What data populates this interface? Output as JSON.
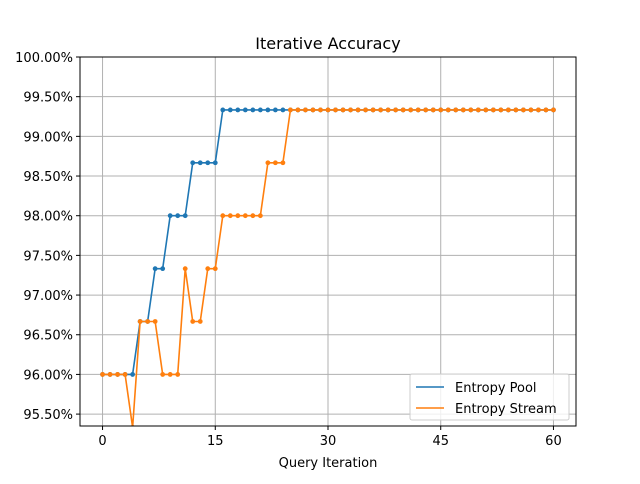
{
  "chart_data": {
    "type": "line",
    "title": "Iterative Accuracy",
    "xlabel": "Query Iteration",
    "ylabel": "",
    "xlim": [
      -3,
      63
    ],
    "ylim": [
      0.9535,
      1.0
    ],
    "xticks": [
      0,
      15,
      30,
      45,
      60
    ],
    "xtick_labels": [
      "0",
      "15",
      "30",
      "45",
      "60"
    ],
    "yticks": [
      0.955,
      0.96,
      0.965,
      0.97,
      0.975,
      0.98,
      0.985,
      0.99,
      0.995,
      1.0
    ],
    "ytick_labels": [
      "95.50%",
      "96.00%",
      "96.50%",
      "97.00%",
      "97.50%",
      "98.00%",
      "98.50%",
      "99.00%",
      "99.50%",
      "100.00%"
    ],
    "grid": true,
    "legend_position": "bottom-right",
    "x": [
      0,
      1,
      2,
      3,
      4,
      5,
      6,
      7,
      8,
      9,
      10,
      11,
      12,
      13,
      14,
      15,
      16,
      17,
      18,
      19,
      20,
      21,
      22,
      23,
      24,
      25,
      26,
      27,
      28,
      29,
      30,
      31,
      32,
      33,
      34,
      35,
      36,
      37,
      38,
      39,
      40,
      41,
      42,
      43,
      44,
      45,
      46,
      47,
      48,
      49,
      50,
      51,
      52,
      53,
      54,
      55,
      56,
      57,
      58,
      59,
      60
    ],
    "series": [
      {
        "name": "Entropy Pool",
        "color": "#1f77b4",
        "values": [
          0.96,
          0.96,
          0.96,
          0.96,
          0.96,
          0.96667,
          0.96667,
          0.97333,
          0.97333,
          0.98,
          0.98,
          0.98,
          0.98667,
          0.98667,
          0.98667,
          0.98667,
          0.99333,
          0.99333,
          0.99333,
          0.99333,
          0.99333,
          0.99333,
          0.99333,
          0.99333,
          0.99333,
          0.99333,
          0.99333,
          0.99333,
          0.99333,
          0.99333,
          0.99333,
          0.99333,
          0.99333,
          0.99333,
          0.99333,
          0.99333,
          0.99333,
          0.99333,
          0.99333,
          0.99333,
          0.99333,
          0.99333,
          0.99333,
          0.99333,
          0.99333,
          0.99333,
          0.99333,
          0.99333,
          0.99333,
          0.99333,
          0.99333,
          0.99333,
          0.99333,
          0.99333,
          0.99333,
          0.99333,
          0.99333,
          0.99333,
          0.99333,
          0.99333,
          0.99333
        ]
      },
      {
        "name": "Entropy Stream",
        "color": "#ff7f0e",
        "values": [
          0.96,
          0.96,
          0.96,
          0.96,
          0.95333,
          0.96667,
          0.96667,
          0.96667,
          0.96,
          0.96,
          0.96,
          0.97333,
          0.96667,
          0.96667,
          0.97333,
          0.97333,
          0.98,
          0.98,
          0.98,
          0.98,
          0.98,
          0.98,
          0.98667,
          0.98667,
          0.98667,
          0.99333,
          0.99333,
          0.99333,
          0.99333,
          0.99333,
          0.99333,
          0.99333,
          0.99333,
          0.99333,
          0.99333,
          0.99333,
          0.99333,
          0.99333,
          0.99333,
          0.99333,
          0.99333,
          0.99333,
          0.99333,
          0.99333,
          0.99333,
          0.99333,
          0.99333,
          0.99333,
          0.99333,
          0.99333,
          0.99333,
          0.99333,
          0.99333,
          0.99333,
          0.99333,
          0.99333,
          0.99333,
          0.99333,
          0.99333,
          0.99333,
          0.99333
        ]
      }
    ]
  }
}
